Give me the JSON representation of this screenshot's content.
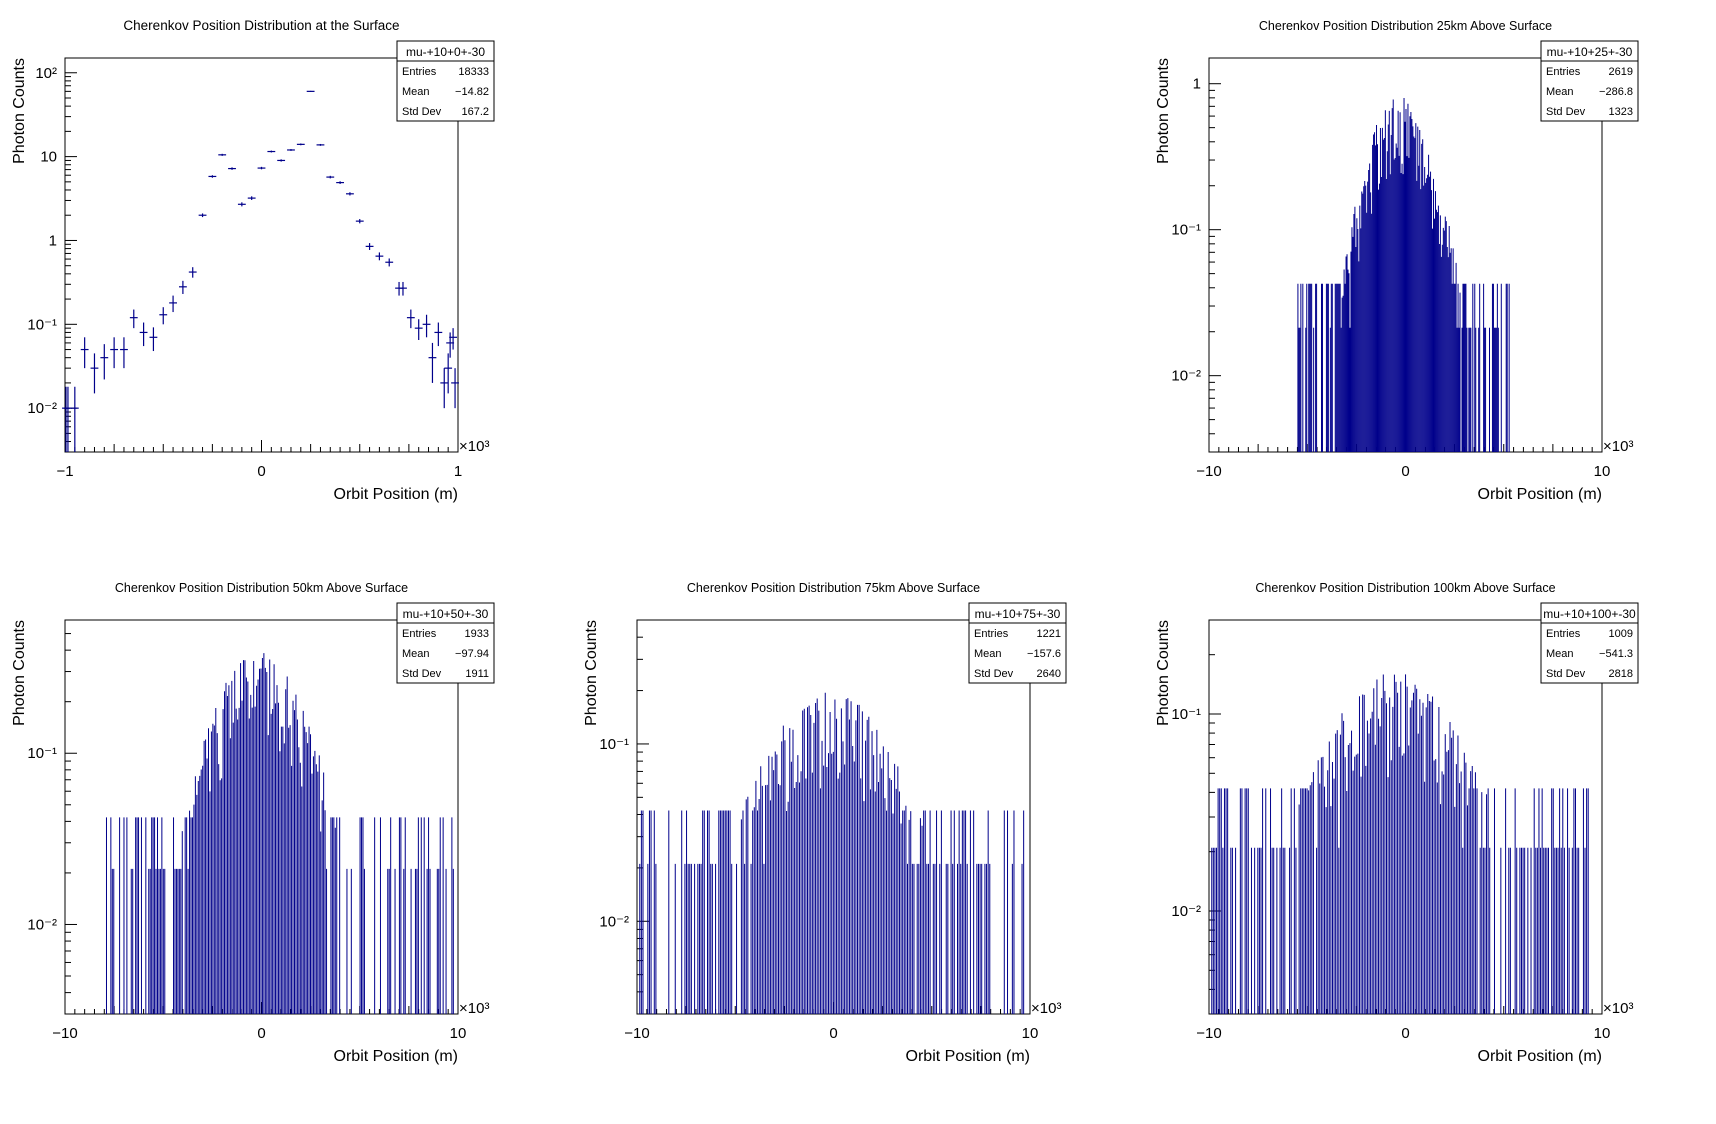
{
  "chart_data": [
    {
      "type": "histogram",
      "title": "Cherenkov Position Distribution at the Surface",
      "xlabel": "Orbit Position (m)",
      "ylabel": "Photon Counts",
      "x_multiplier": "×10³",
      "xlim": [
        -1,
        1
      ],
      "ylim_log": [
        0.003,
        150
      ],
      "xticks": [
        -1,
        0,
        1
      ],
      "yticks": [
        {
          "v": 0.01,
          "label": "10⁻²"
        },
        {
          "v": 0.1,
          "label": "10⁻¹"
        },
        {
          "v": 1,
          "label": "1"
        },
        {
          "v": 10,
          "label": "10"
        },
        {
          "v": 100,
          "label": "10²"
        }
      ],
      "stats": {
        "name": "mu-+10+0+-30",
        "rows": [
          {
            "label": "Entries",
            "value": "18333"
          },
          {
            "label": "Mean",
            "value": "−14.82"
          },
          {
            "label": "Std Dev",
            "value": "167.2"
          }
        ]
      },
      "line_color": "#00008b",
      "bins": [
        {
          "x": -0.995,
          "y": 0.01,
          "e": 0.008
        },
        {
          "x": -0.985,
          "y": 0.01,
          "e": 0.008
        },
        {
          "x": -0.95,
          "y": 0.01,
          "e": 0.008
        },
        {
          "x": -0.9,
          "y": 0.05,
          "e": 0.02
        },
        {
          "x": -0.85,
          "y": 0.03,
          "e": 0.015
        },
        {
          "x": -0.8,
          "y": 0.04,
          "e": 0.018
        },
        {
          "x": -0.75,
          "y": 0.05,
          "e": 0.02
        },
        {
          "x": -0.7,
          "y": 0.05,
          "e": 0.02
        },
        {
          "x": -0.65,
          "y": 0.12,
          "e": 0.03
        },
        {
          "x": -0.6,
          "y": 0.08,
          "e": 0.025
        },
        {
          "x": -0.55,
          "y": 0.07,
          "e": 0.022
        },
        {
          "x": -0.5,
          "y": 0.13,
          "e": 0.03
        },
        {
          "x": -0.45,
          "y": 0.18,
          "e": 0.04
        },
        {
          "x": -0.4,
          "y": 0.28,
          "e": 0.05
        },
        {
          "x": -0.35,
          "y": 0.42,
          "e": 0.06
        },
        {
          "x": -0.3,
          "y": 2.0,
          "e": 0.1
        },
        {
          "x": -0.25,
          "y": 5.8,
          "e": 0.2
        },
        {
          "x": -0.2,
          "y": 10.5,
          "e": 0.3
        },
        {
          "x": -0.15,
          "y": 7.2,
          "e": 0.25
        },
        {
          "x": -0.1,
          "y": 2.7,
          "e": 0.15
        },
        {
          "x": -0.05,
          "y": 3.2,
          "e": 0.16
        },
        {
          "x": 0.0,
          "y": 7.3,
          "e": 0.25
        },
        {
          "x": 0.05,
          "y": 11.5,
          "e": 0.3
        },
        {
          "x": 0.1,
          "y": 9.0,
          "e": 0.28
        },
        {
          "x": 0.15,
          "y": 12.0,
          "e": 0.3
        },
        {
          "x": 0.2,
          "y": 14.0,
          "e": 0.35
        },
        {
          "x": 0.25,
          "y": 60.0,
          "e": 0.8
        },
        {
          "x": 0.3,
          "y": 13.8,
          "e": 0.35
        },
        {
          "x": 0.35,
          "y": 5.7,
          "e": 0.2
        },
        {
          "x": 0.4,
          "y": 4.9,
          "e": 0.18
        },
        {
          "x": 0.45,
          "y": 3.6,
          "e": 0.16
        },
        {
          "x": 0.5,
          "y": 1.7,
          "e": 0.1
        },
        {
          "x": 0.55,
          "y": 0.85,
          "e": 0.08
        },
        {
          "x": 0.6,
          "y": 0.65,
          "e": 0.07
        },
        {
          "x": 0.65,
          "y": 0.55,
          "e": 0.06
        },
        {
          "x": 0.7,
          "y": 0.27,
          "e": 0.05
        },
        {
          "x": 0.72,
          "y": 0.27,
          "e": 0.05
        },
        {
          "x": 0.76,
          "y": 0.12,
          "e": 0.03
        },
        {
          "x": 0.8,
          "y": 0.09,
          "e": 0.025
        },
        {
          "x": 0.84,
          "y": 0.1,
          "e": 0.03
        },
        {
          "x": 0.87,
          "y": 0.04,
          "e": 0.02
        },
        {
          "x": 0.9,
          "y": 0.08,
          "e": 0.025
        },
        {
          "x": 0.93,
          "y": 0.02,
          "e": 0.01
        },
        {
          "x": 0.95,
          "y": 0.03,
          "e": 0.015
        },
        {
          "x": 0.96,
          "y": 0.06,
          "e": 0.02
        },
        {
          "x": 0.975,
          "y": 0.07,
          "e": 0.02
        },
        {
          "x": 0.985,
          "y": 0.02,
          "e": 0.01
        }
      ]
    },
    {
      "type": "histogram",
      "title": "Cherenkov Position Distribution 25km Above Surface",
      "xlabel": "Orbit Position (m)",
      "ylabel": "Photon Counts",
      "x_multiplier": "×10³",
      "xlim": [
        -10,
        10
      ],
      "ylim_log": [
        0.003,
        1.5
      ],
      "xticks": [
        -10,
        0,
        10
      ],
      "yticks": [
        {
          "v": 0.01,
          "label": "10⁻²"
        },
        {
          "v": 0.1,
          "label": "10⁻¹"
        },
        {
          "v": 1,
          "label": "1"
        }
      ],
      "stats": {
        "name": "mu-+10+25+-30",
        "rows": [
          {
            "label": "Entries",
            "value": "2619"
          },
          {
            "label": "Mean",
            "value": "−286.8"
          },
          {
            "label": "Std Dev",
            "value": "1323"
          }
        ]
      },
      "line_color": "#00008b",
      "noise": {
        "mean": -0.2868,
        "sd": 1.25,
        "peak": 0.5,
        "floor": 0.02,
        "xmin": -5.5,
        "xmax": 5.5,
        "n": 220,
        "seed": 25
      }
    },
    {
      "type": "histogram",
      "title": "Cherenkov Position Distribution 50km Above Surface",
      "xlabel": "Orbit Position (m)",
      "ylabel": "Photon Counts",
      "x_multiplier": "×10³",
      "xlim": [
        -10,
        10
      ],
      "ylim_log": [
        0.003,
        0.6
      ],
      "xticks": [
        -10,
        0,
        10
      ],
      "yticks": [
        {
          "v": 0.01,
          "label": "10⁻²"
        },
        {
          "v": 0.1,
          "label": "10⁻¹"
        }
      ],
      "stats": {
        "name": "mu-+10+50+-30",
        "rows": [
          {
            "label": "Entries",
            "value": "1933"
          },
          {
            "label": "Mean",
            "value": "−97.94"
          },
          {
            "label": "Std Dev",
            "value": "1911"
          }
        ]
      },
      "line_color": "#00008b",
      "noise": {
        "mean": -0.098,
        "sd": 1.8,
        "peak": 0.25,
        "floor": 0.02,
        "xmin": -8.0,
        "xmax": 9.8,
        "n": 240,
        "seed": 50
      }
    },
    {
      "type": "histogram",
      "title": "Cherenkov Position Distribution 75km Above Surface",
      "xlabel": "Orbit Position (m)",
      "ylabel": "Photon Counts",
      "x_multiplier": "×10³",
      "xlim": [
        -10,
        10
      ],
      "ylim_log": [
        0.003,
        0.5
      ],
      "xticks": [
        -10,
        0,
        10
      ],
      "yticks": [
        {
          "v": 0.01,
          "label": "10⁻²"
        },
        {
          "v": 0.1,
          "label": "10⁻¹"
        }
      ],
      "stats": {
        "name": "mu-+10+75+-30",
        "rows": [
          {
            "label": "Entries",
            "value": "1221"
          },
          {
            "label": "Mean",
            "value": "−157.6"
          },
          {
            "label": "Std Dev",
            "value": "2640"
          }
        ]
      },
      "line_color": "#00008b",
      "noise": {
        "mean": -0.158,
        "sd": 2.6,
        "peak": 0.12,
        "floor": 0.02,
        "xmin": -9.9,
        "xmax": 9.8,
        "n": 240,
        "seed": 75
      }
    },
    {
      "type": "histogram",
      "title": "Cherenkov Position Distribution 100km Above Surface",
      "xlabel": "Orbit Position (m)",
      "ylabel": "Photon Counts",
      "x_multiplier": "×10³",
      "xlim": [
        -10,
        10
      ],
      "ylim_log": [
        0.003,
        0.3
      ],
      "xticks": [
        -10,
        0,
        10
      ],
      "yticks": [
        {
          "v": 0.01,
          "label": "10⁻²"
        },
        {
          "v": 0.1,
          "label": "10⁻¹"
        }
      ],
      "stats": {
        "name": "mu-+10+100+-30",
        "rows": [
          {
            "label": "Entries",
            "value": "1009"
          },
          {
            "label": "Mean",
            "value": "−541.3"
          },
          {
            "label": "Std Dev",
            "value": "2818"
          }
        ]
      },
      "line_color": "#00008b",
      "noise": {
        "mean": -0.541,
        "sd": 2.8,
        "peak": 0.1,
        "floor": 0.02,
        "xmin": -9.9,
        "xmax": 9.5,
        "n": 240,
        "seed": 100
      }
    }
  ]
}
